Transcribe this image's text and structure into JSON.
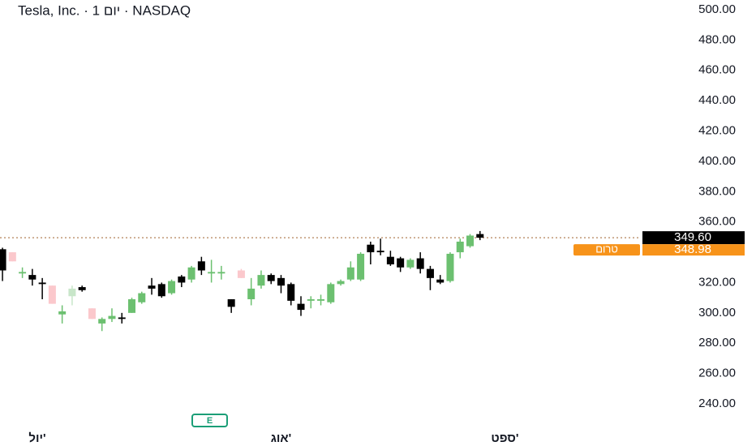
{
  "chart_data": {
    "type": "candlestick",
    "title": "Tesla, Inc. · 1 יום · NASDAQ",
    "open": [
      342,
      340,
      326,
      325,
      320,
      318,
      299,
      311,
      317,
      303,
      293,
      296,
      297,
      300,
      307,
      318,
      319,
      313,
      324,
      322,
      334,
      326,
      326,
      309,
      328,
      309,
      318,
      325,
      323,
      319,
      306,
      308,
      308,
      307,
      319,
      322,
      322,
      345,
      341,
      337,
      336,
      330,
      336,
      329,
      322,
      321,
      340,
      344,
      352
    ],
    "high": [
      343,
      340,
      330,
      329,
      323,
      318,
      305,
      318,
      318,
      303,
      297,
      303,
      300,
      310,
      314,
      323,
      320,
      322,
      325,
      331,
      337,
      335,
      331,
      309,
      329,
      323,
      328,
      326,
      325,
      320,
      311,
      311,
      312,
      320,
      322,
      334,
      340,
      347,
      349,
      341,
      337,
      336,
      340,
      331,
      325,
      340,
      349,
      352,
      354
    ],
    "low": [
      321,
      334,
      323,
      318,
      309,
      306,
      293,
      305,
      314,
      296,
      288,
      294,
      293,
      300,
      306,
      312,
      310,
      312,
      317,
      320,
      325,
      320,
      322,
      300,
      323,
      305,
      316,
      319,
      313,
      305,
      298,
      303,
      305,
      306,
      318,
      321,
      321,
      332,
      338,
      331,
      327,
      329,
      326,
      315,
      319,
      320,
      336,
      343,
      348
    ],
    "close": [
      328,
      334,
      327,
      322,
      319,
      306,
      301,
      316,
      315,
      296,
      296,
      298,
      296,
      309,
      313,
      316,
      311,
      321,
      320,
      330,
      328,
      327,
      327,
      304,
      323,
      316,
      325,
      321,
      318,
      308,
      302,
      309,
      309,
      319,
      321,
      330,
      339,
      340,
      340,
      332,
      330,
      335,
      329,
      323,
      320,
      339,
      347,
      351,
      349.6
    ],
    "colors": [
      "#000000",
      "#fbc8cc",
      "#6cc070",
      "#000000",
      "#000000",
      "#fbc8cc",
      "#6cc070",
      "#c8e6c9",
      "#000000",
      "#fbc8cc",
      "#6cc070",
      "#6cc070",
      "#000000",
      "#6cc070",
      "#6cc070",
      "#000000",
      "#000000",
      "#6cc070",
      "#000000",
      "#6cc070",
      "#000000",
      "#6cc070",
      "#6cc070",
      "#000000",
      "#fbc8cc",
      "#6cc070",
      "#6cc070",
      "#000000",
      "#000000",
      "#000000",
      "#000000",
      "#6cc070",
      "#6cc070",
      "#6cc070",
      "#6cc070",
      "#6cc070",
      "#6cc070",
      "#000000",
      "#000000",
      "#000000",
      "#000000",
      "#6cc070",
      "#000000",
      "#000000",
      "#000000",
      "#6cc070",
      "#6cc070",
      "#6cc070",
      "#000000"
    ],
    "xlim": [
      -0.25,
      64
    ],
    "xticks": [
      {
        "value": 3.5,
        "label": "יול'"
      },
      {
        "value": 28,
        "label": "אוג'"
      },
      {
        "value": 50.5,
        "label": "ספט'"
      }
    ],
    "ylim": [
      240,
      500
    ],
    "yticks": [
      {
        "value": 240,
        "label": "240.00"
      },
      {
        "value": 260,
        "label": "260.00"
      },
      {
        "value": 280,
        "label": "280.00"
      },
      {
        "value": 300,
        "label": "300.00"
      },
      {
        "value": 320,
        "label": "320.00"
      },
      {
        "value": 340,
        "label": "340.00"
      },
      {
        "value": 360,
        "label": "360.00"
      },
      {
        "value": 380,
        "label": "380.00"
      },
      {
        "value": 400,
        "label": "400.00"
      },
      {
        "value": 420,
        "label": "420.00"
      },
      {
        "value": 440,
        "label": "440.00"
      },
      {
        "value": 460,
        "label": "460.00"
      },
      {
        "value": 480,
        "label": "480.00"
      },
      {
        "value": 500,
        "label": "500.00"
      }
    ],
    "last_price": {
      "value": 349.6,
      "label": "349.60"
    },
    "premarket": {
      "value": 348.98,
      "label": "348.98",
      "name": "טרום"
    },
    "earnings_marker": "E"
  }
}
